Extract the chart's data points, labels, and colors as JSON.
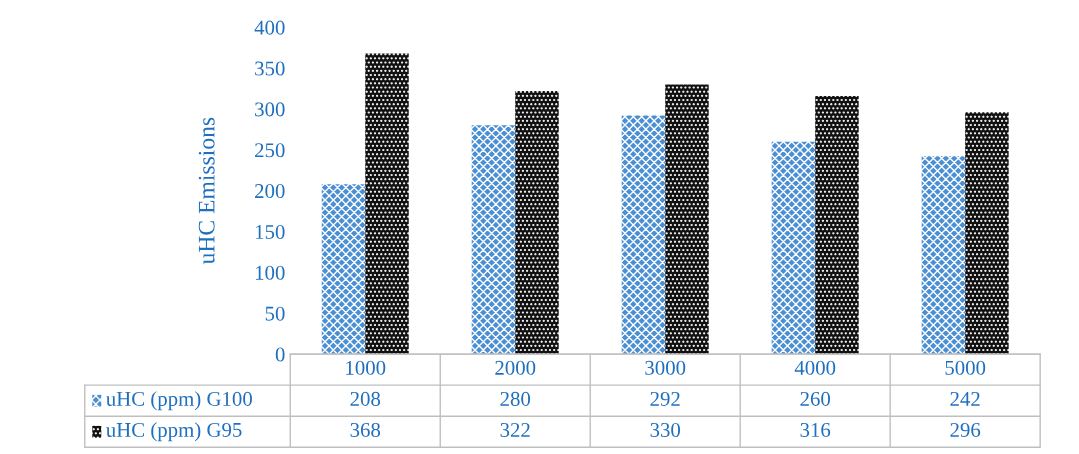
{
  "chart_data": {
    "type": "bar",
    "ylabel": "uHC Emissions",
    "categories": [
      "1000",
      "2000",
      "3000",
      "4000",
      "5000"
    ],
    "series": [
      {
        "name": "uHC (ppm) G100",
        "color": "#4a8fd4",
        "values": [
          208,
          280,
          292,
          260,
          242
        ]
      },
      {
        "name": "uHC (ppm) G95",
        "color": "#111111",
        "values": [
          368,
          322,
          330,
          316,
          296
        ]
      }
    ],
    "ylim": [
      0,
      400
    ],
    "yticks": [
      0,
      50,
      100,
      150,
      200,
      250,
      300,
      350,
      400
    ],
    "grid": false,
    "legend": "bottom",
    "data_labels": true
  }
}
